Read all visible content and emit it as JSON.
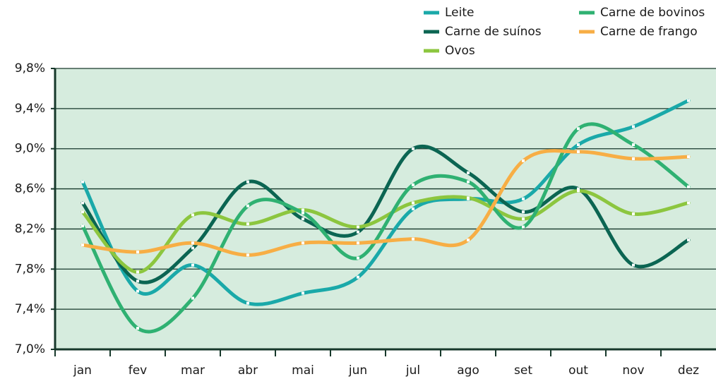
{
  "chart_data": {
    "type": "line",
    "categories": [
      "jan",
      "fev",
      "mar",
      "abr",
      "mai",
      "jun",
      "jul",
      "ago",
      "set",
      "out",
      "nov",
      "dez"
    ],
    "series": [
      {
        "name": "Leite",
        "color": "#1aa9a9",
        "values": [
          8.67,
          7.58,
          7.84,
          7.46,
          7.56,
          7.72,
          8.4,
          8.5,
          8.5,
          9.04,
          9.22,
          9.48
        ]
      },
      {
        "name": "Carne de suínos",
        "color": "#0b6552",
        "values": [
          8.46,
          7.68,
          8.01,
          8.67,
          8.3,
          8.17,
          9.0,
          8.76,
          8.37,
          8.6,
          7.84,
          8.09
        ]
      },
      {
        "name": "Ovos",
        "color": "#8cc63f",
        "values": [
          8.37,
          7.77,
          8.34,
          8.25,
          8.39,
          8.22,
          8.46,
          8.51,
          8.3,
          8.58,
          8.35,
          8.46
        ]
      },
      {
        "name": "Carne de bovinos",
        "color": "#2fb172",
        "values": [
          8.23,
          7.21,
          7.51,
          8.43,
          8.36,
          7.91,
          8.64,
          8.67,
          8.22,
          9.2,
          9.04,
          8.62
        ]
      },
      {
        "name": "Carne de frango",
        "color": "#f7ae45",
        "values": [
          8.04,
          7.97,
          8.06,
          7.94,
          8.06,
          8.06,
          8.1,
          8.09,
          8.88,
          8.97,
          8.9,
          8.92
        ]
      }
    ],
    "ylim": [
      7.0,
      9.8
    ],
    "yticks": [
      {
        "value": 7.0,
        "label": "7,0%"
      },
      {
        "value": 7.4,
        "label": "7,4%"
      },
      {
        "value": 7.8,
        "label": "7,8%"
      },
      {
        "value": 8.2,
        "label": "8,2%"
      },
      {
        "value": 8.6,
        "label": "8,6%"
      },
      {
        "value": 9.0,
        "label": "9,0%"
      },
      {
        "value": 9.4,
        "label": "9,4%"
      },
      {
        "value": 9.8,
        "label": "9,8%"
      }
    ],
    "grid": true,
    "legend": "top-right",
    "background": "#d6ecde"
  }
}
